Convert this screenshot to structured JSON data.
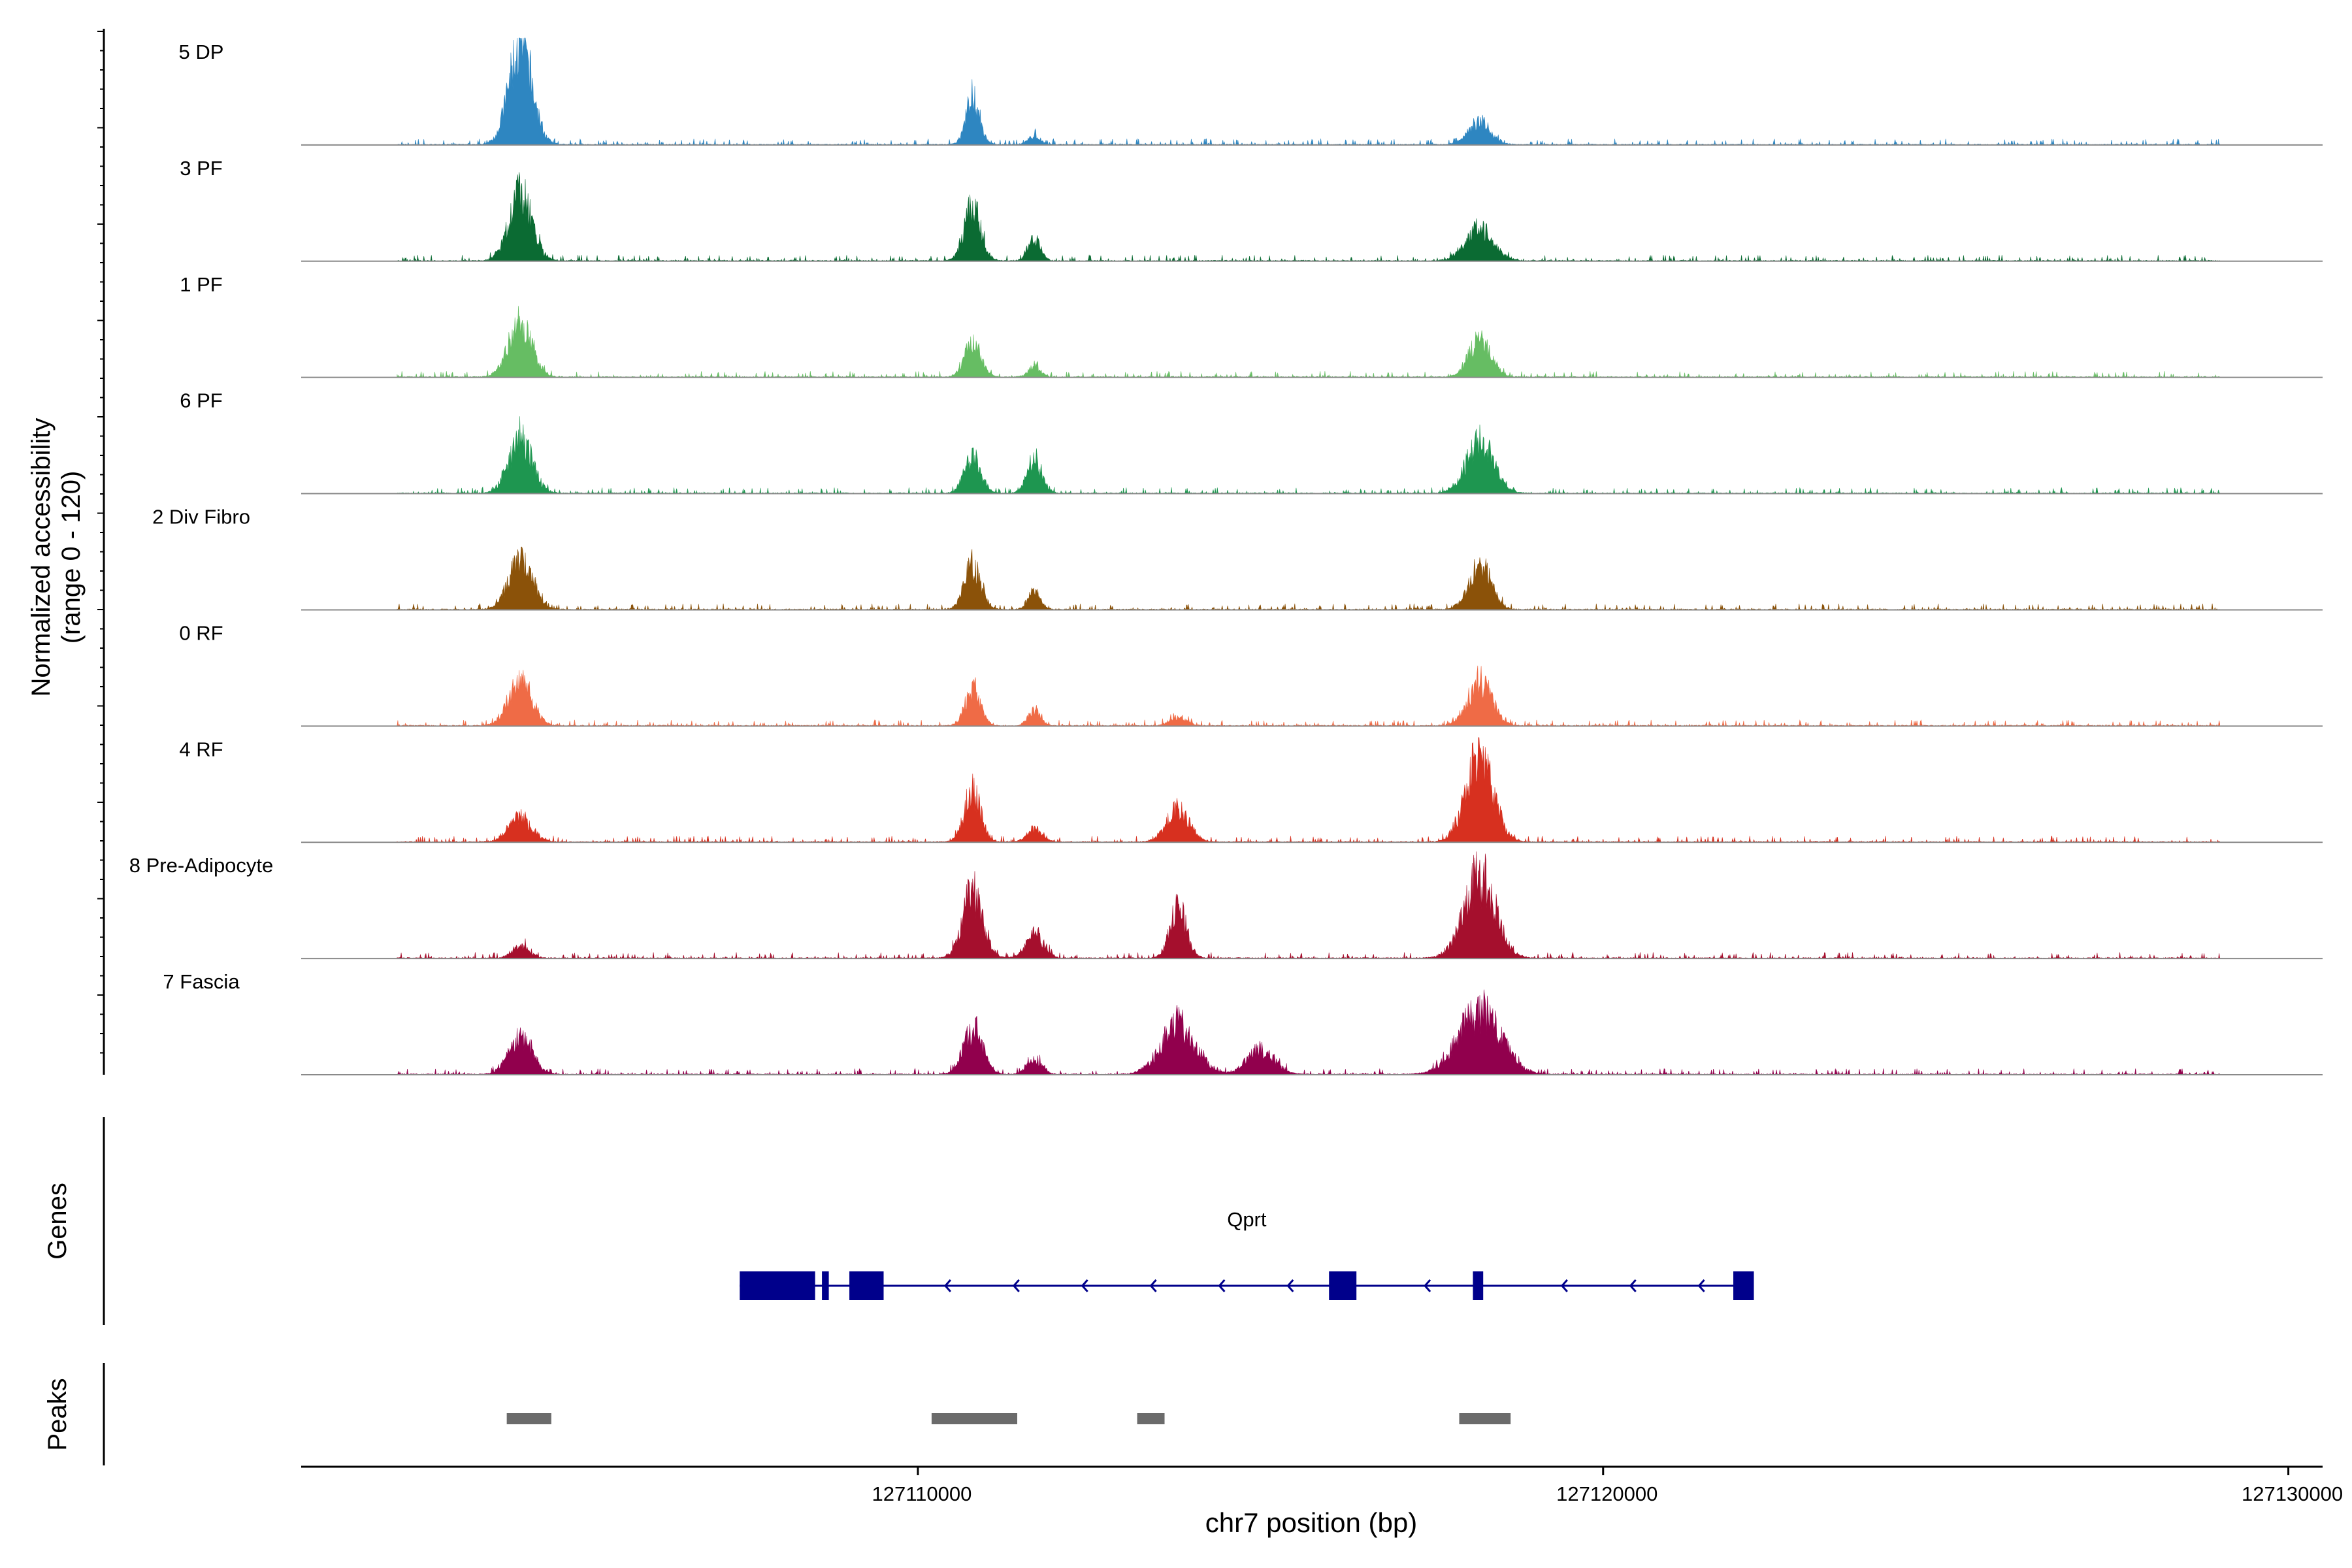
{
  "chart_data": {
    "type": "area",
    "title": "",
    "xlabel": "chr7 position (bp)",
    "ylabel_line1": "Normalized accessibility",
    "ylabel_line2": "(range 0 - 120)",
    "ylim": [
      0,
      120
    ],
    "xlim": [
      127101000,
      127130500
    ],
    "x_ticks": [
      127110000,
      127120000,
      127130000
    ],
    "x_tick_labels": [
      "127110000",
      "127120000",
      "127130000"
    ],
    "track_region": [
      127102400,
      127129000
    ],
    "peak_centers": [
      127104200,
      127110800,
      127111700,
      127113800,
      127115000,
      127118200
    ],
    "series": [
      {
        "name": "5 DP",
        "color": "#2E86C1",
        "peaks": [
          [
            127104200,
            120,
            170
          ],
          [
            127110800,
            60,
            100
          ],
          [
            127111700,
            10,
            90
          ],
          [
            127118200,
            28,
            160
          ]
        ]
      },
      {
        "name": "3 PF",
        "color": "#0B6B33",
        "peaks": [
          [
            127104200,
            80,
            170
          ],
          [
            127110800,
            65,
            120
          ],
          [
            127111700,
            28,
            90
          ],
          [
            127118200,
            40,
            200
          ]
        ]
      },
      {
        "name": "1 PF",
        "color": "#66BD63",
        "peaks": [
          [
            127104200,
            65,
            170
          ],
          [
            127110800,
            40,
            120
          ],
          [
            127111700,
            12,
            90
          ],
          [
            127118200,
            45,
            160
          ]
        ]
      },
      {
        "name": "6 PF",
        "color": "#1E9650",
        "peaks": [
          [
            127104200,
            65,
            170
          ],
          [
            127110800,
            45,
            120
          ],
          [
            127111700,
            40,
            110
          ],
          [
            127118200,
            62,
            200
          ]
        ]
      },
      {
        "name": "2 Div Fibro",
        "color": "#8B5209",
        "peaks": [
          [
            127104200,
            60,
            170
          ],
          [
            127110800,
            55,
            120
          ],
          [
            127111700,
            22,
            90
          ],
          [
            127118200,
            55,
            160
          ]
        ]
      },
      {
        "name": "0 RF",
        "color": "#EF6B46",
        "peaks": [
          [
            127104200,
            55,
            170
          ],
          [
            127110800,
            45,
            110
          ],
          [
            127111700,
            18,
            90
          ],
          [
            127113800,
            10,
            120
          ],
          [
            127118200,
            55,
            170
          ]
        ]
      },
      {
        "name": "4 RF",
        "color": "#D7301F",
        "peaks": [
          [
            127104200,
            30,
            170
          ],
          [
            127110800,
            60,
            120
          ],
          [
            127111700,
            15,
            110
          ],
          [
            127113800,
            40,
            160
          ],
          [
            127118200,
            105,
            200
          ]
        ]
      },
      {
        "name": "8 Pre-Adipocyte",
        "color": "#A50F2D",
        "peaks": [
          [
            127104200,
            15,
            120
          ],
          [
            127110800,
            80,
            150
          ],
          [
            127111700,
            30,
            130
          ],
          [
            127113800,
            60,
            120
          ],
          [
            127118200,
            100,
            230
          ]
        ]
      },
      {
        "name": "7 Fascia",
        "color": "#91004D",
        "peaks": [
          [
            127104200,
            45,
            170
          ],
          [
            127110800,
            55,
            140
          ],
          [
            127111700,
            18,
            110
          ],
          [
            127113800,
            60,
            250
          ],
          [
            127115000,
            30,
            200
          ],
          [
            127118200,
            80,
            300
          ]
        ]
      }
    ]
  },
  "genes": {
    "label": "Genes",
    "gene_name": "Qprt",
    "strand": "-",
    "color": "#00008B",
    "start": 127107400,
    "end": 127122200,
    "exons": [
      [
        127107400,
        127108500
      ],
      [
        127108600,
        127108700
      ],
      [
        127109000,
        127109500
      ],
      [
        127116000,
        127116400
      ],
      [
        127118100,
        127118250
      ],
      [
        127121900,
        127122200
      ]
    ]
  },
  "peaks": {
    "label": "Peaks",
    "color": "#6B6B6B",
    "regions": [
      [
        127104000,
        127104650
      ],
      [
        127110200,
        127111450
      ],
      [
        127113200,
        127113600
      ],
      [
        127117900,
        127118650
      ]
    ]
  }
}
